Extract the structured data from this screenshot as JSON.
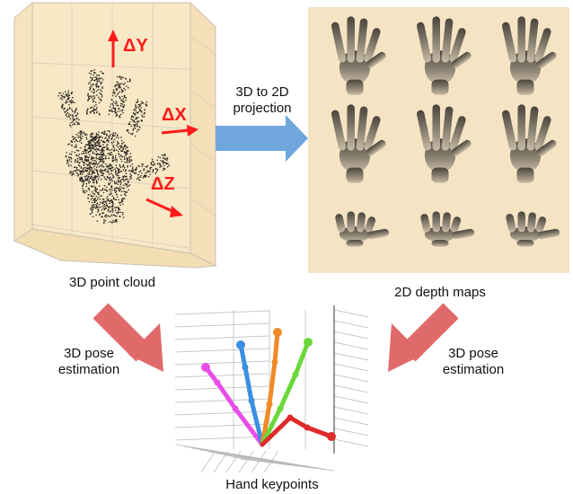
{
  "colors": {
    "panel_bg": "#f8e8c6",
    "panel_bg_2": "#f4dfb8",
    "grid": "#c9c2b2",
    "delta_red": "#ff1a1a",
    "projection_arrow": "#6fa7dd",
    "pose_arrow": "#e06a6a"
  },
  "point_cloud": {
    "caption": "3D point cloud",
    "delta_x": "ΔX",
    "delta_y": "ΔY",
    "delta_z": "ΔZ"
  },
  "projection": {
    "line1": "3D to 2D",
    "line2": "projection"
  },
  "depth_maps": {
    "caption": "2D depth maps",
    "views": [
      "hand-view-1",
      "hand-view-2",
      "hand-view-3",
      "hand-view-4",
      "hand-view-5",
      "hand-view-6",
      "hand-view-7",
      "hand-view-8",
      "hand-view-9"
    ]
  },
  "pose_left": {
    "line1": "3D pose",
    "line2": "estimation"
  },
  "pose_right": {
    "line1": "3D pose",
    "line2": "estimation"
  },
  "keypoints": {
    "caption": "Hand keypoints",
    "finger_colors": [
      "#e84de8",
      "#3a8fe0",
      "#f08a28",
      "#6ad83a",
      "#e02a2a"
    ]
  }
}
